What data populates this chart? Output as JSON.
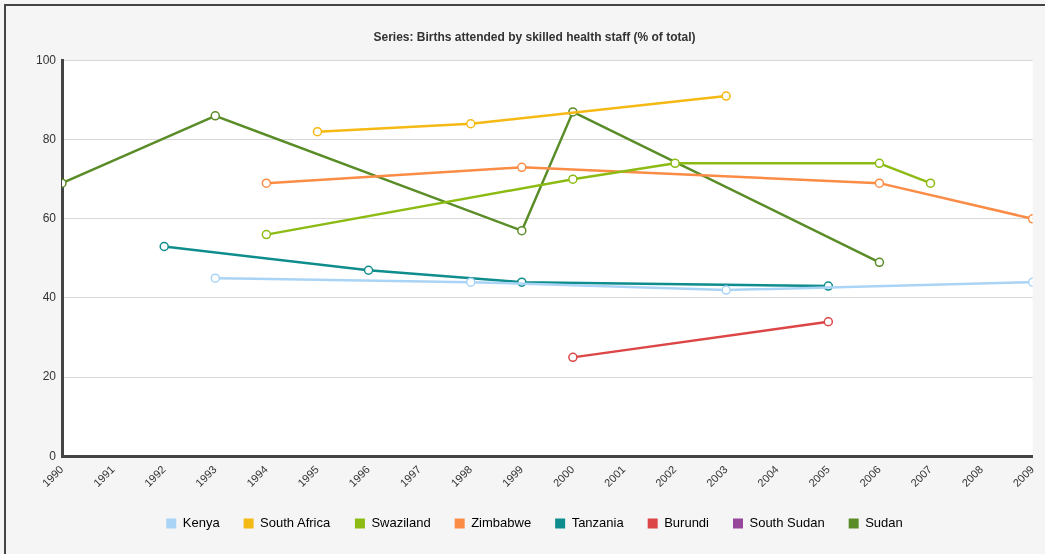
{
  "chart_data": {
    "type": "line",
    "title": "Series: Births attended by skilled health staff (% of total)",
    "xlim": [
      1990,
      2009
    ],
    "xticks": [
      1990,
      1991,
      1992,
      1993,
      1994,
      1995,
      1996,
      1997,
      1998,
      1999,
      2000,
      2001,
      2002,
      2003,
      2004,
      2005,
      2006,
      2007,
      2008,
      2009
    ],
    "ylim": [
      0,
      100
    ],
    "yticks": [
      0,
      20,
      40,
      60,
      80,
      100
    ],
    "grid": "y",
    "legend": "bottom",
    "marker": "circle",
    "line_style": "solid",
    "series": [
      {
        "name": "Kenya",
        "color": "#aad4f5",
        "x": [
          1993,
          1998,
          2003,
          2009
        ],
        "values": [
          45,
          44,
          42,
          44
        ]
      },
      {
        "name": "South Africa",
        "color": "#f5b914",
        "x": [
          1995,
          1998,
          2003
        ],
        "values": [
          82,
          84,
          91
        ]
      },
      {
        "name": "Swaziland",
        "color": "#8cbb14",
        "x": [
          1994,
          2000,
          2002,
          2006,
          2007
        ],
        "values": [
          56,
          70,
          74,
          74,
          69
        ]
      },
      {
        "name": "Zimbabwe",
        "color": "#fa8c46",
        "x": [
          1994,
          1999,
          2006,
          2009
        ],
        "values": [
          69,
          73,
          69,
          60
        ]
      },
      {
        "name": "Tanzania",
        "color": "#0f8c8c",
        "x": [
          1992,
          1996,
          1999,
          2005
        ],
        "values": [
          53,
          47,
          44,
          43
        ]
      },
      {
        "name": "Burundi",
        "color": "#dc4646",
        "x": [
          2000,
          2005
        ],
        "values": [
          25,
          34
        ]
      },
      {
        "name": "South Sudan",
        "color": "#96469b"
      },
      {
        "name": "Sudan",
        "color": "#5a8c28",
        "x": [
          1990,
          1993,
          1999,
          2000,
          2006
        ],
        "values": [
          69,
          86,
          57,
          87,
          49
        ]
      }
    ]
  }
}
